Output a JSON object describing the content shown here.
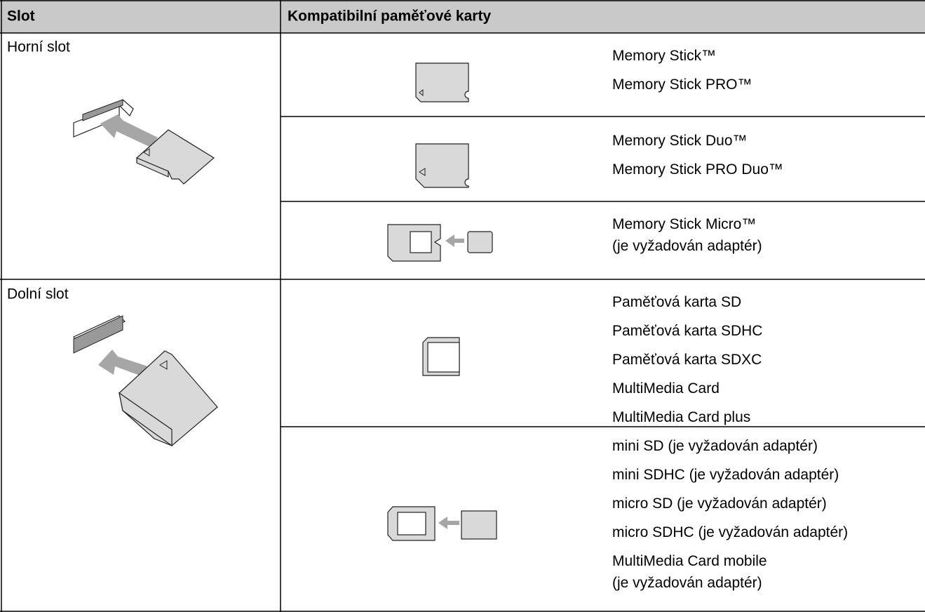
{
  "table": {
    "header": [
      "Slot",
      "Kompatibilní paměťové karty"
    ],
    "rows": [
      {
        "slot": "Horní slot",
        "cards": [
          {
            "items": [
              "Memory Stick™",
              "Memory Stick PRO™"
            ]
          },
          {
            "items": [
              "Memory Stick Duo™",
              "Memory Stick PRO Duo™"
            ]
          },
          {
            "items": [
              "Memory Stick Micro™\n(je vyžadován adaptér)"
            ]
          }
        ]
      },
      {
        "slot": "Dolní slot",
        "cards": [
          {
            "items": [
              "Paměťová karta SD",
              "Paměťová karta SDHC",
              "Paměťová karta SDXC",
              "MultiMedia Card",
              "MultiMedia Card plus"
            ]
          },
          {
            "items": [
              "mini SD (je vyžadován adaptér)",
              "mini SDHC (je vyžadován adaptér)",
              "micro SD (je vyžadován adaptér)",
              "micro SDHC (je vyžadován adaptér)",
              "MultiMedia Card mobile\n(je vyžadován adaptér)"
            ]
          }
        ]
      }
    ]
  }
}
